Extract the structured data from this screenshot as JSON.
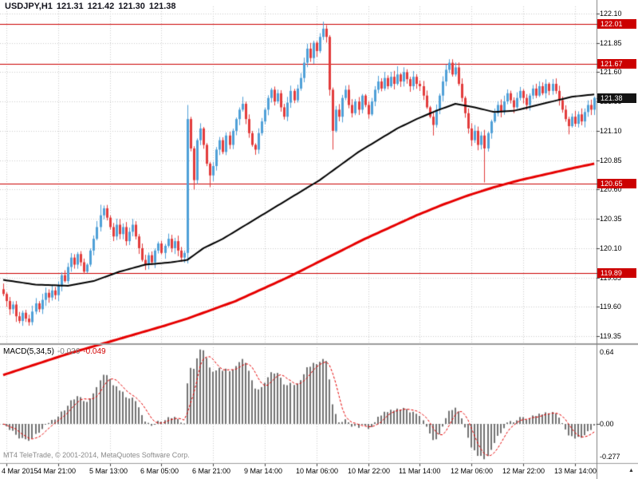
{
  "header": {
    "symbol_period": "USDJPY,H1",
    "open": "121.31",
    "high": "121.42",
    "low": "121.30",
    "close": "121.38"
  },
  "macd_label": {
    "name": "MACD(5,34,5)",
    "main_value": "-0.026",
    "signal_value": "-0.049"
  },
  "footer": {
    "copyright": "MT4 TeleTrade, © 2001-2014, MetaQuotes Software Corp."
  },
  "chart_data": {
    "type": "candlestick",
    "symbol": "USDJPY",
    "timeframe": "H1",
    "price_axis": {
      "ticks": [
        "122.10",
        "121.85",
        "121.60",
        "121.35",
        "121.10",
        "120.85",
        "120.60",
        "120.35",
        "120.10",
        "119.85",
        "119.60",
        "119.35"
      ],
      "top_price": 122.16,
      "bottom_price": 119.29
    },
    "bid": {
      "label": "121.38",
      "value": 121.38
    },
    "horizontal_lines": [
      {
        "label": "122.01",
        "value": 122.01
      },
      {
        "label": "121.67",
        "value": 121.67
      },
      {
        "label": "120.65",
        "value": 120.65
      },
      {
        "label": "119.89",
        "value": 119.89
      }
    ],
    "time_axis": [
      {
        "bar": 1,
        "text": "4 Mar 2015"
      },
      {
        "bar": 17,
        "text": "4 Mar 21:00"
      },
      {
        "bar": 33,
        "text": "5 Mar 13:00"
      },
      {
        "bar": 49,
        "text": "6 Mar 05:00"
      },
      {
        "bar": 65,
        "text": "6 Mar 21:00"
      },
      {
        "bar": 81,
        "text": "9 Mar 14:00"
      },
      {
        "bar": 97,
        "text": "10 Mar 06:00"
      },
      {
        "bar": 113,
        "text": "10 Mar 22:00"
      },
      {
        "bar": 129,
        "text": "11 Mar 14:00"
      },
      {
        "bar": 145,
        "text": "12 Mar 06:00"
      },
      {
        "bar": 161,
        "text": "12 Mar 22:00"
      },
      {
        "bar": 177,
        "text": "13 Mar 14:00"
      }
    ],
    "candles": {
      "first_open": 119.75,
      "wick_base": 0.012,
      "wick_var": 0.04,
      "closes": [
        119.71,
        119.65,
        119.58,
        119.62,
        119.52,
        119.48,
        119.55,
        119.5,
        119.47,
        119.56,
        119.63,
        119.58,
        119.66,
        119.72,
        119.68,
        119.74,
        119.7,
        119.78,
        119.87,
        119.82,
        119.94,
        120.02,
        119.96,
        120.05,
        119.98,
        119.9,
        119.96,
        120.08,
        120.18,
        120.28,
        120.38,
        120.44,
        120.36,
        120.28,
        120.2,
        120.3,
        120.22,
        120.28,
        120.16,
        120.24,
        120.3,
        120.2,
        120.1,
        120.0,
        119.96,
        120.04,
        119.98,
        120.08,
        120.14,
        120.06,
        120.12,
        120.18,
        120.1,
        120.16,
        120.08,
        120.02,
        120.06,
        121.2,
        120.95,
        120.68,
        121.02,
        121.12,
        120.98,
        120.82,
        120.72,
        120.8,
        120.94,
        121.02,
        120.92,
        121.06,
        120.98,
        121.1,
        121.2,
        121.28,
        121.33,
        121.2,
        121.08,
        120.98,
        120.94,
        121.08,
        121.18,
        121.28,
        121.38,
        121.45,
        121.35,
        121.42,
        121.3,
        121.22,
        121.34,
        121.44,
        121.36,
        121.46,
        121.55,
        121.68,
        121.8,
        121.72,
        121.85,
        121.78,
        121.9,
        121.97,
        121.9,
        121.45,
        121.1,
        121.28,
        121.22,
        121.38,
        121.45,
        121.32,
        121.25,
        121.35,
        121.28,
        121.4,
        121.32,
        121.24,
        121.35,
        121.45,
        121.52,
        121.46,
        121.55,
        121.48,
        121.56,
        121.5,
        121.58,
        121.52,
        121.6,
        121.54,
        121.48,
        121.56,
        121.5,
        121.48,
        121.4,
        121.3,
        121.22,
        121.15,
        121.28,
        121.4,
        121.52,
        121.62,
        121.68,
        121.58,
        121.64,
        121.5,
        121.38,
        121.25,
        121.12,
        121.02,
        121.1,
        120.98,
        121.06,
        120.95,
        121.08,
        121.18,
        121.25,
        121.32,
        121.26,
        121.35,
        121.42,
        121.36,
        121.3,
        121.38,
        121.44,
        121.38,
        121.32,
        121.4,
        121.46,
        121.4,
        121.48,
        121.42,
        121.5,
        121.44,
        121.5,
        121.44,
        121.36,
        121.28,
        121.2,
        121.14,
        121.22,
        121.16,
        121.24,
        121.18,
        121.26,
        121.32,
        121.28,
        121.38
      ],
      "overrides": {
        "8": {
          "low": 119.44
        },
        "30": {
          "high": 120.47
        },
        "57": {
          "high": 121.32,
          "low": 119.97
        },
        "59": {
          "low": 120.6
        },
        "64": {
          "low": 120.62
        },
        "74": {
          "high": 121.39
        },
        "99": {
          "high": 122.03
        },
        "100": {
          "high": 122.0
        },
        "102": {
          "low": 120.94
        },
        "122": {
          "high": 121.65
        },
        "133": {
          "low": 121.06
        },
        "138": {
          "high": 121.71
        },
        "149": {
          "low": 120.66
        },
        "175": {
          "low": 121.07
        }
      }
    },
    "overlays": {
      "ma_black": [
        [
          0,
          119.83
        ],
        [
          10,
          119.79
        ],
        [
          20,
          119.78
        ],
        [
          28,
          119.82
        ],
        [
          36,
          119.9
        ],
        [
          44,
          119.96
        ],
        [
          52,
          119.98
        ],
        [
          57,
          120.0
        ],
        [
          62,
          120.1
        ],
        [
          68,
          120.18
        ],
        [
          74,
          120.28
        ],
        [
          80,
          120.38
        ],
        [
          86,
          120.48
        ],
        [
          92,
          120.58
        ],
        [
          98,
          120.68
        ],
        [
          104,
          120.8
        ],
        [
          110,
          120.92
        ],
        [
          116,
          121.02
        ],
        [
          122,
          121.12
        ],
        [
          128,
          121.2
        ],
        [
          134,
          121.27
        ],
        [
          140,
          121.33
        ],
        [
          146,
          121.3
        ],
        [
          152,
          121.26
        ],
        [
          158,
          121.27
        ],
        [
          164,
          121.31
        ],
        [
          170,
          121.35
        ],
        [
          176,
          121.39
        ],
        [
          183,
          121.41
        ]
      ],
      "ma_red": [
        [
          0,
          119.02
        ],
        [
          10,
          119.11
        ],
        [
          20,
          119.2
        ],
        [
          30,
          119.28
        ],
        [
          40,
          119.36
        ],
        [
          50,
          119.44
        ],
        [
          57,
          119.5
        ],
        [
          64,
          119.57
        ],
        [
          72,
          119.65
        ],
        [
          80,
          119.75
        ],
        [
          88,
          119.85
        ],
        [
          96,
          119.96
        ],
        [
          104,
          120.07
        ],
        [
          112,
          120.18
        ],
        [
          120,
          120.28
        ],
        [
          128,
          120.38
        ],
        [
          136,
          120.47
        ],
        [
          144,
          120.55
        ],
        [
          152,
          120.62
        ],
        [
          160,
          120.68
        ],
        [
          168,
          120.73
        ],
        [
          176,
          120.78
        ],
        [
          183,
          120.82
        ]
      ]
    },
    "macd": {
      "fast": 5,
      "slow": 34,
      "signal_period": 5,
      "axis_labels": {
        "max": "0.64",
        "zero": "0.00",
        "min": "-0.277"
      }
    },
    "colors": {
      "bull": "#4fa0d8",
      "bear": "#e23b3b",
      "grid": "#cccccc",
      "hline": "#cc0000",
      "hline_label_bg": "#cc0000",
      "bid_label_bg": "#141414",
      "ma_black": "#000000",
      "ma_red": "#e60000",
      "macd_hist": "#737373",
      "macd_signal": "#e60000",
      "separator": "#9b9b9b",
      "axis_line": "#808080",
      "tick": "#404040"
    }
  }
}
